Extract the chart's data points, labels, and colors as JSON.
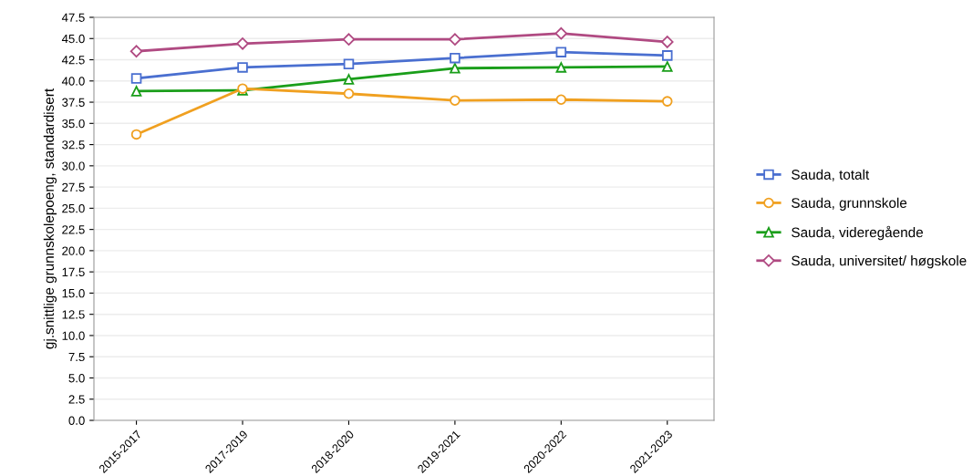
{
  "chart_data": {
    "type": "line",
    "ylabel": "gj.snittlige grunnskolepoeng, standardisert",
    "categories": [
      "2015-2017",
      "2017-2019",
      "2018-2020",
      "2019-2021",
      "2020-2022",
      "2021-2023"
    ],
    "series": [
      {
        "name": "Sauda, totalt",
        "color": "#4a6fd0",
        "marker": "square",
        "values": [
          40.3,
          41.6,
          42.0,
          42.7,
          43.4,
          43.0
        ]
      },
      {
        "name": "Sauda, grunnskole",
        "color": "#f0a020",
        "marker": "circle",
        "values": [
          33.7,
          39.1,
          38.5,
          37.7,
          37.8,
          37.6
        ]
      },
      {
        "name": "Sauda, videregående",
        "color": "#1a9e1a",
        "marker": "triangle",
        "values": [
          38.8,
          38.9,
          40.2,
          41.5,
          41.6,
          41.7
        ]
      },
      {
        "name": "Sauda, universitet/ høgskole",
        "color": "#b04a82",
        "marker": "diamond",
        "values": [
          43.5,
          44.4,
          44.9,
          44.9,
          45.6,
          44.6
        ]
      }
    ],
    "ylim": [
      0,
      47.5
    ],
    "yticks": [
      {
        "value": 0,
        "label": "0.0"
      },
      {
        "value": 2.5,
        "label": "2.5"
      },
      {
        "value": 5,
        "label": "5.0"
      },
      {
        "value": 7.5,
        "label": "7.5"
      },
      {
        "value": 10,
        "label": "10.0"
      },
      {
        "value": 12.5,
        "label": "12.5"
      },
      {
        "value": 15,
        "label": "15.0"
      },
      {
        "value": 17.5,
        "label": "17.5"
      },
      {
        "value": 20,
        "label": "20.0"
      },
      {
        "value": 22.5,
        "label": "22.5"
      },
      {
        "value": 25,
        "label": "25.0"
      },
      {
        "value": 27.5,
        "label": "27.5"
      },
      {
        "value": 30,
        "label": "30.0"
      },
      {
        "value": 32.5,
        "label": "32.5"
      },
      {
        "value": 35,
        "label": "35.0"
      },
      {
        "value": 37.5,
        "label": "37.5"
      },
      {
        "value": 40,
        "label": "40.0"
      },
      {
        "value": 42.5,
        "label": "42.5"
      },
      {
        "value": 45,
        "label": "45.0"
      },
      {
        "value": 47.5,
        "label": "47.5"
      }
    ],
    "grid": "y",
    "legend": "right",
    "line_style": "solid"
  }
}
